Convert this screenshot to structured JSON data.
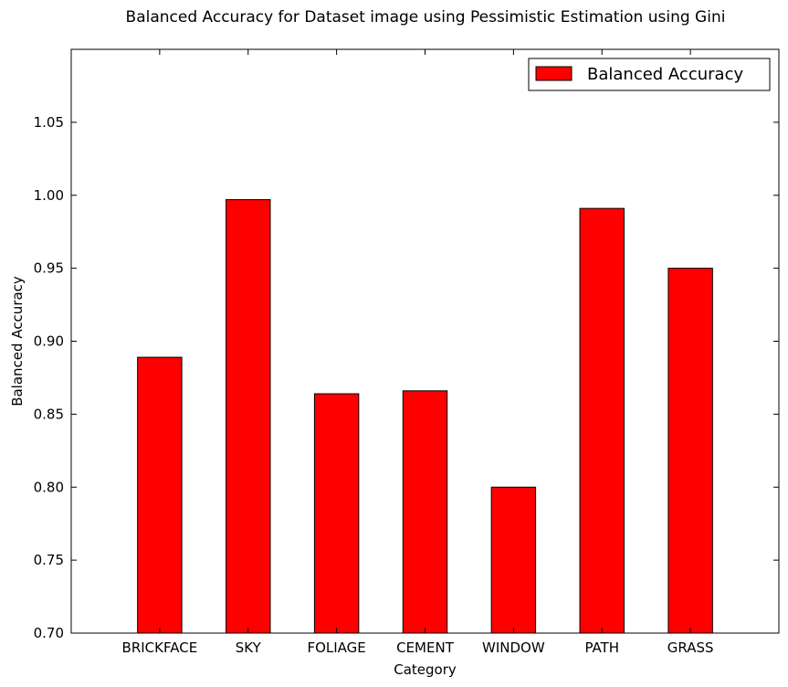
{
  "chart_data": {
    "type": "bar",
    "title": "Balanced Accuracy for Dataset image using Pessimistic Estimation using Gini",
    "xlabel": "Category",
    "ylabel": "Balanced Accuracy",
    "categories": [
      "BRICKFACE",
      "SKY",
      "FOLIAGE",
      "CEMENT",
      "WINDOW",
      "PATH",
      "GRASS"
    ],
    "series": [
      {
        "name": "Balanced Accuracy",
        "values": [
          0.889,
          0.997,
          0.864,
          0.866,
          0.8,
          0.991,
          0.95
        ],
        "color": "#ff0000"
      }
    ],
    "ylim": [
      0.7,
      1.1
    ],
    "yticks": [
      "0.70",
      "0.75",
      "0.80",
      "0.85",
      "0.90",
      "0.95",
      "1.00",
      "1.05"
    ],
    "grid": false,
    "legend_position": "top-right"
  }
}
